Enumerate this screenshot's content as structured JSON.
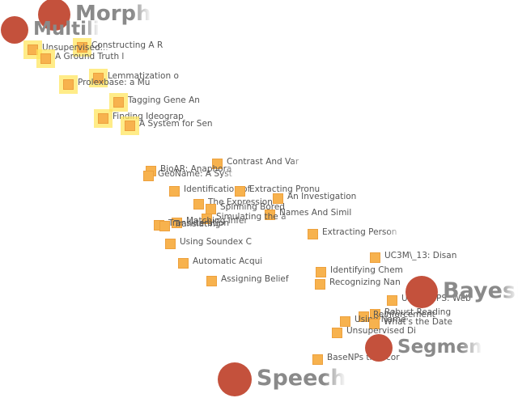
{
  "colors": {
    "topic": "#c4513c",
    "document": "#f7b24e",
    "highlight": "#ffe45a",
    "label": "#555555",
    "topic_label": "#8a8a8a"
  },
  "topics": [
    {
      "label": "Morph",
      "icon": "topic-circle-icon"
    },
    {
      "label": "Multili",
      "icon": "topic-circle-icon"
    },
    {
      "label": "Bayesi",
      "icon": "topic-circle-icon"
    },
    {
      "label": "Segmen",
      "icon": "topic-circle-icon"
    },
    {
      "label": "Speech",
      "icon": "topic-circle-icon"
    }
  ],
  "documents": [
    {
      "label": "Constructing A R",
      "highlighted": true
    },
    {
      "label": "Unsupervised...",
      "highlighted": true
    },
    {
      "label": "A Ground Truth l",
      "highlighted": true
    },
    {
      "label": "Lemmatization o",
      "highlighted": true
    },
    {
      "label": "Prolexbase: a Mu",
      "highlighted": true
    },
    {
      "label": "Tagging Gene An",
      "highlighted": true
    },
    {
      "label": "Finding Ideograp",
      "highlighted": true
    },
    {
      "label": "A System for Sen",
      "highlighted": true
    },
    {
      "label": "Contrast And Var",
      "highlighted": false
    },
    {
      "label": "BioAR: Anaphora",
      "highlighted": false
    },
    {
      "label": "GeoName: A Syst",
      "highlighted": false
    },
    {
      "label": "Identification of",
      "highlighted": false
    },
    {
      "label": "Extracting Pronu",
      "highlighted": false
    },
    {
      "label": "An Investigation",
      "highlighted": false
    },
    {
      "label": "The Expression",
      "highlighted": false
    },
    {
      "label": "Spinning Bored",
      "highlighted": false
    },
    {
      "label": "Names And Simil",
      "highlighted": false
    },
    {
      "label": "Simulating the a",
      "highlighted": false
    },
    {
      "label": "Matching Infer",
      "highlighted": false
    },
    {
      "label": "Transliteration",
      "highlighted": false
    },
    {
      "label": "Translating",
      "highlighted": false
    },
    {
      "label": "Extracting Person",
      "highlighted": false
    },
    {
      "label": "Using Soundex C",
      "highlighted": false
    },
    {
      "label": "UC3M\\_13: Disan",
      "highlighted": false
    },
    {
      "label": "Automatic Acqui",
      "highlighted": false
    },
    {
      "label": "Identifying Chem",
      "highlighted": false
    },
    {
      "label": "Assigning Belief",
      "highlighted": false
    },
    {
      "label": "Recognizing Nan",
      "highlighted": false
    },
    {
      "label": "UNN-WePS: Web",
      "highlighted": false
    },
    {
      "label": "Robust Reading",
      "highlighted": false
    },
    {
      "label": "Reinforcement",
      "highlighted": false
    },
    {
      "label": "Using Name",
      "highlighted": false
    },
    {
      "label": "What's the Date",
      "highlighted": false
    },
    {
      "label": "Unsupervised Di",
      "highlighted": false
    },
    {
      "label": "BaseNPs that cor",
      "highlighted": false
    }
  ]
}
